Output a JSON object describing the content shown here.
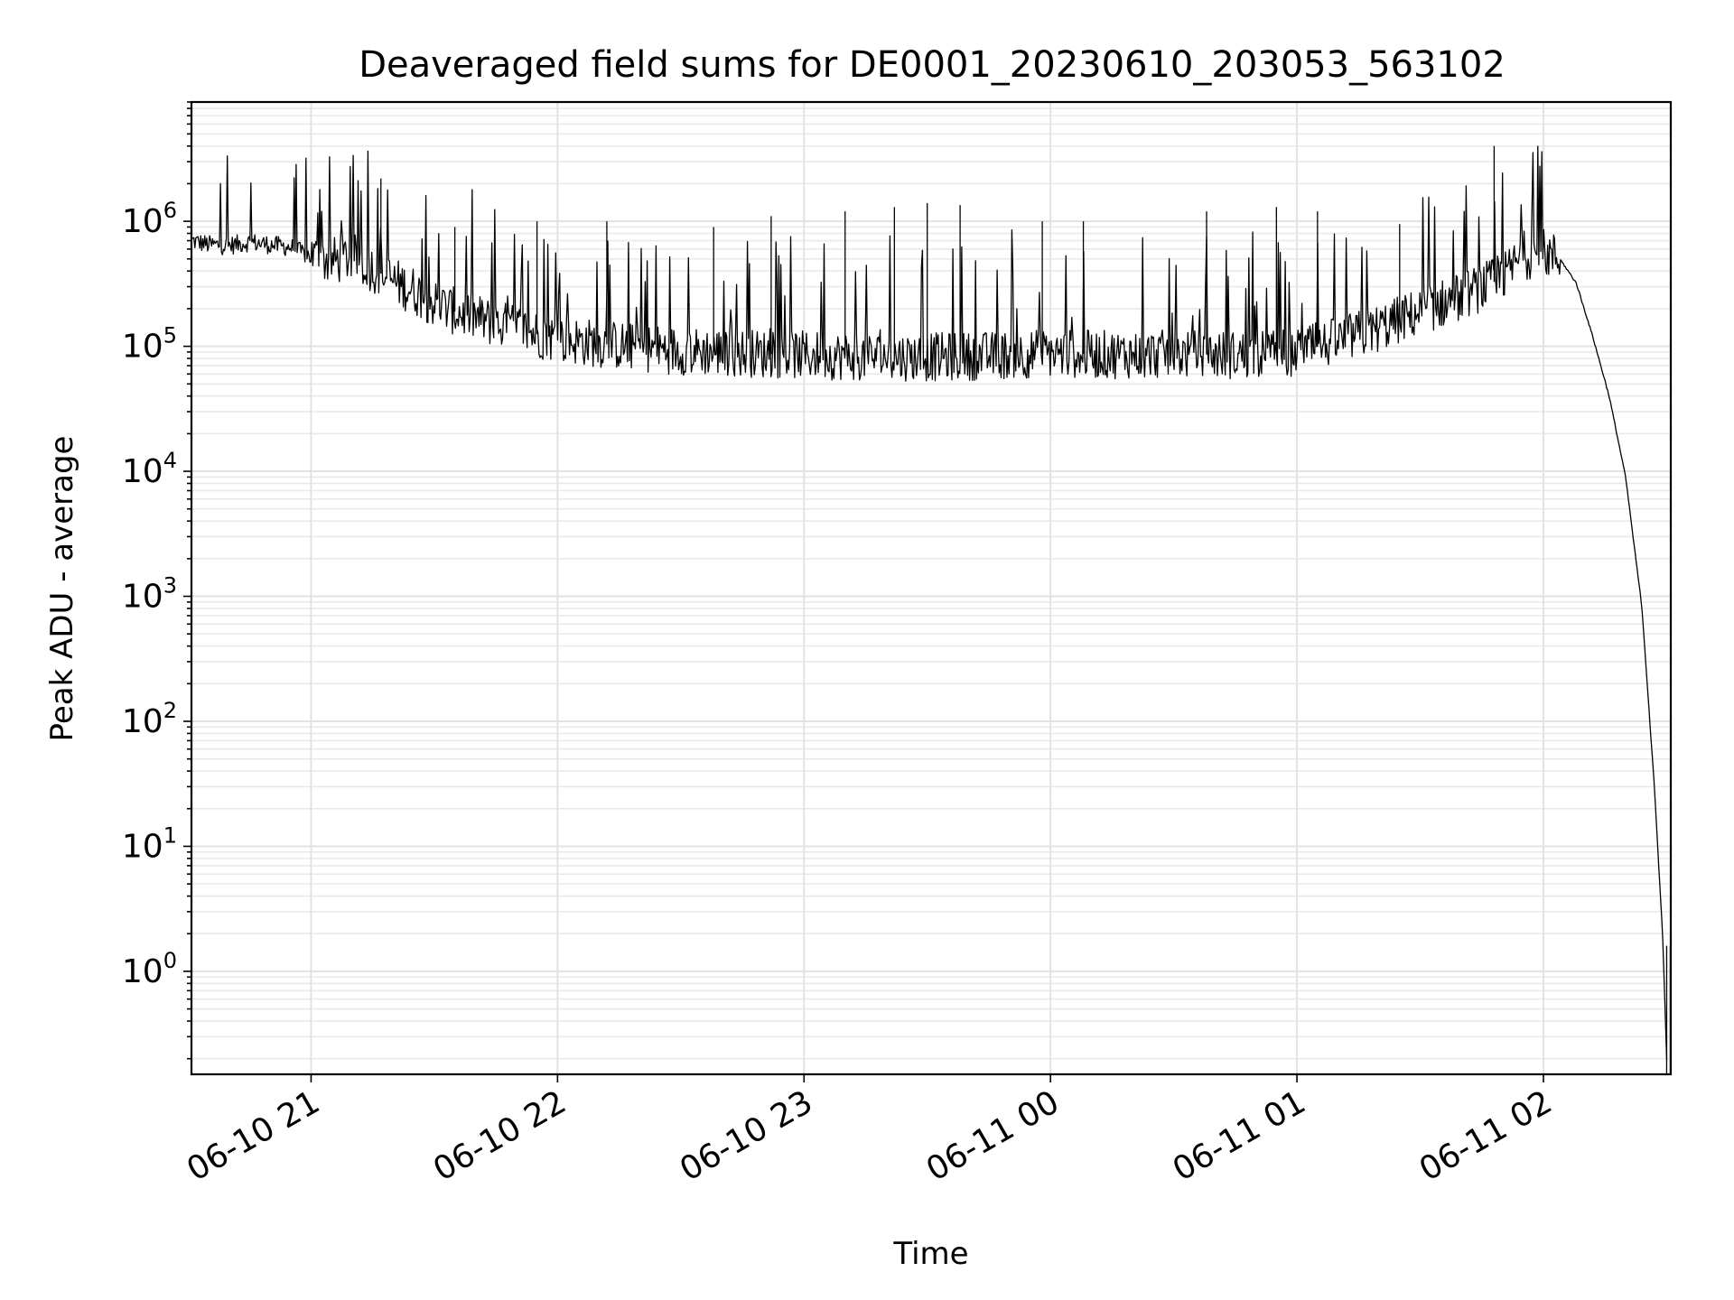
{
  "chart_data": {
    "type": "line",
    "title": "Deaveraged field sums for DE0001_20230610_203053_563102",
    "xlabel": "Time",
    "ylabel": "Peak ADU - average",
    "xscale": "time",
    "yscale": "log",
    "xlim": [
      "2023-06-10 20:30:53",
      "2023-06-11 02:31:00"
    ],
    "ylim": [
      0.15,
      9000000
    ],
    "x_ticks": [
      {
        "time": "2023-06-10 21:00",
        "label": "06-10 21"
      },
      {
        "time": "2023-06-10 22:00",
        "label": "06-10 22"
      },
      {
        "time": "2023-06-10 23:00",
        "label": "06-10 23"
      },
      {
        "time": "2023-06-11 00:00",
        "label": "06-11 00"
      },
      {
        "time": "2023-06-11 01:00",
        "label": "06-11 01"
      },
      {
        "time": "2023-06-11 02:00",
        "label": "06-11 02"
      }
    ],
    "y_ticks": [
      {
        "value": 1,
        "base": "10",
        "exp": "0"
      },
      {
        "value": 10,
        "base": "10",
        "exp": "1"
      },
      {
        "value": 100,
        "base": "10",
        "exp": "2"
      },
      {
        "value": 1000,
        "base": "10",
        "exp": "3"
      },
      {
        "value": 10000,
        "base": "10",
        "exp": "4"
      },
      {
        "value": 100000,
        "base": "10",
        "exp": "5"
      },
      {
        "value": 1000000,
        "base": "10",
        "exp": "6"
      }
    ],
    "grid": true,
    "legend": "none",
    "series": [
      {
        "color": "#000000",
        "points": [
          [
            "2023-06-10 20:31",
            700000
          ],
          [
            "2023-06-10 20:35",
            650000
          ],
          [
            "2023-06-10 20:40",
            640000
          ],
          [
            "2023-06-10 20:45",
            680000
          ],
          [
            "2023-06-10 20:50",
            650000
          ],
          [
            "2023-06-10 20:55",
            620000
          ],
          [
            "2023-06-10 21:00",
            520000
          ],
          [
            "2023-06-10 21:05",
            480000
          ],
          [
            "2023-06-10 21:10",
            520000
          ],
          [
            "2023-06-10 21:15",
            420000
          ],
          [
            "2023-06-10 21:20",
            330000
          ],
          [
            "2023-06-10 21:25",
            280000
          ],
          [
            "2023-06-10 21:30",
            220000
          ],
          [
            "2023-06-10 21:35",
            190000
          ],
          [
            "2023-06-10 21:40",
            170000
          ],
          [
            "2023-06-10 21:45",
            150000
          ],
          [
            "2023-06-10 21:50",
            140000
          ],
          [
            "2023-06-10 21:55",
            125000
          ],
          [
            "2023-06-10 22:00",
            115000
          ],
          [
            "2023-06-10 22:10",
            105000
          ],
          [
            "2023-06-10 22:20",
            98000
          ],
          [
            "2023-06-10 22:30",
            92000
          ],
          [
            "2023-06-10 22:40",
            90000
          ],
          [
            "2023-06-10 22:50",
            87000
          ],
          [
            "2023-06-10 23:00",
            85000
          ],
          [
            "2023-06-10 23:15",
            83000
          ],
          [
            "2023-06-10 23:30",
            82000
          ],
          [
            "2023-06-10 23:45",
            84000
          ],
          [
            "2023-06-11 00:00",
            88000
          ],
          [
            "2023-06-11 00:15",
            86000
          ],
          [
            "2023-06-11 00:30",
            87000
          ],
          [
            "2023-06-11 00:45",
            85000
          ],
          [
            "2023-06-11 01:00",
            90000
          ],
          [
            "2023-06-11 01:10",
            110000
          ],
          [
            "2023-06-11 01:20",
            140000
          ],
          [
            "2023-06-11 01:30",
            190000
          ],
          [
            "2023-06-11 01:40",
            250000
          ],
          [
            "2023-06-11 01:50",
            350000
          ],
          [
            "2023-06-11 01:55",
            530000
          ],
          [
            "2023-06-11 02:00",
            560000
          ],
          [
            "2023-06-11 02:04",
            500000
          ],
          [
            "2023-06-11 02:08",
            320000
          ],
          [
            "2023-06-11 02:12",
            120000
          ],
          [
            "2023-06-11 02:16",
            40000
          ],
          [
            "2023-06-11 02:20",
            9000
          ],
          [
            "2023-06-11 02:24",
            800
          ],
          [
            "2023-06-11 02:27",
            30
          ],
          [
            "2023-06-11 02:29",
            2
          ],
          [
            "2023-06-11 02:30",
            0.2
          ]
        ],
        "spikes": [
          [
            "2023-06-10 21:17",
            2200000
          ],
          [
            "2023-06-10 21:35",
            900000
          ],
          [
            "2023-06-10 21:55",
            1000000
          ],
          [
            "2023-06-10 22:12",
            1000000
          ],
          [
            "2023-06-10 22:38",
            900000
          ],
          [
            "2023-06-10 22:52",
            1100000
          ],
          [
            "2023-06-10 23:10",
            1200000
          ],
          [
            "2023-06-10 23:22",
            1300000
          ],
          [
            "2023-06-10 23:30",
            1400000
          ],
          [
            "2023-06-10 23:38",
            1350000
          ],
          [
            "2023-06-10 23:58",
            1000000
          ],
          [
            "2023-06-11 00:08",
            1000000
          ],
          [
            "2023-06-11 00:38",
            1200000
          ],
          [
            "2023-06-11 00:55",
            1300000
          ],
          [
            "2023-06-11 01:05",
            1200000
          ],
          [
            "2023-06-11 01:25",
            950000
          ],
          [
            "2023-06-11 01:48",
            4000000
          ]
        ]
      }
    ]
  }
}
